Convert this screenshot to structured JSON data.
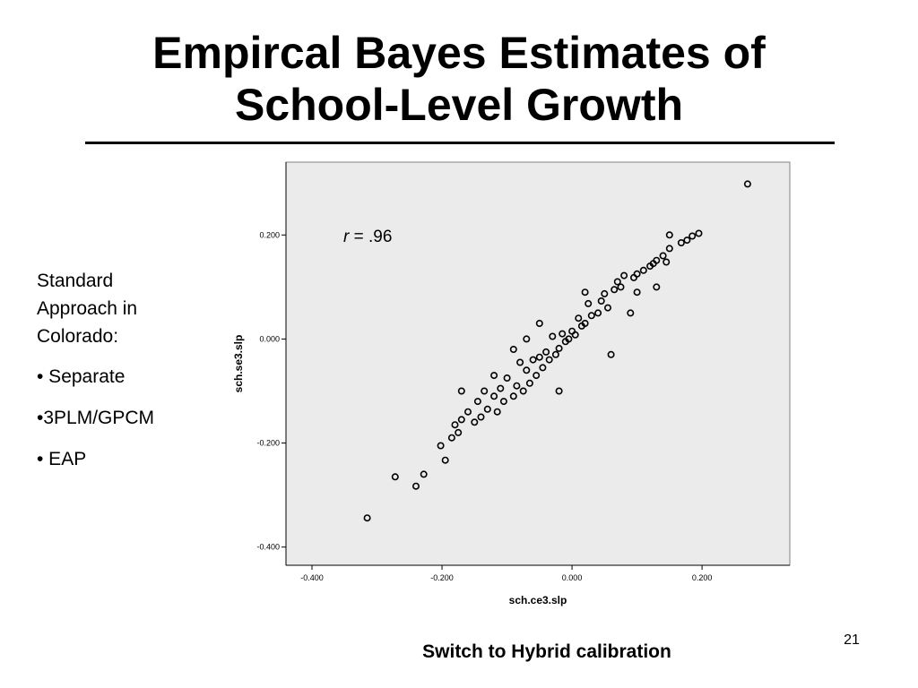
{
  "slide": {
    "title_line1": "Empircal Bayes Estimates of",
    "title_line2": "School-Level Growth",
    "notes_heading": "Standard Approach in Colorado:",
    "notes_bullets": [
      "• Separate",
      "•3PLM/GPCM",
      "• EAP"
    ],
    "footer": "Switch to Hybrid calibration",
    "page_number": "21"
  },
  "chart_data": {
    "type": "scatter",
    "xlabel": "sch.ce3.slp",
    "ylabel": "sch.se3.slp",
    "annotation_r": "r",
    "annotation_value": " = .96",
    "xlim": [
      -0.44,
      0.335
    ],
    "ylim": [
      -0.435,
      0.34
    ],
    "xticks": [
      -0.4,
      -0.2,
      0.0,
      0.2
    ],
    "xtick_labels": [
      "-0.400",
      "-0.200",
      "0.000",
      "0.200"
    ],
    "yticks": [
      -0.4,
      -0.2,
      0.0,
      0.2
    ],
    "ytick_labels": [
      "-0.400",
      "-0.200",
      "0.000",
      "0.200"
    ],
    "grid": false,
    "plot_background": "#ebebeb",
    "marker_color": "#000000",
    "marker": "open-circle",
    "points": [
      [
        0.27,
        0.298
      ],
      [
        0.195,
        0.203
      ],
      [
        0.185,
        0.198
      ],
      [
        0.177,
        0.19
      ],
      [
        0.168,
        0.185
      ],
      [
        0.15,
        0.2
      ],
      [
        0.15,
        0.174
      ],
      [
        0.145,
        0.148
      ],
      [
        0.14,
        0.16
      ],
      [
        0.13,
        0.151
      ],
      [
        0.125,
        0.145
      ],
      [
        0.12,
        0.14
      ],
      [
        0.11,
        0.132
      ],
      [
        0.1,
        0.125
      ],
      [
        0.095,
        0.118
      ],
      [
        0.08,
        0.122
      ],
      [
        0.075,
        0.1
      ],
      [
        0.065,
        0.095
      ],
      [
        0.055,
        0.06
      ],
      [
        0.05,
        0.087
      ],
      [
        0.045,
        0.073
      ],
      [
        0.04,
        0.05
      ],
      [
        0.03,
        0.045
      ],
      [
        0.025,
        0.068
      ],
      [
        0.02,
        0.03
      ],
      [
        0.015,
        0.025
      ],
      [
        0.01,
        0.04
      ],
      [
        0.005,
        0.008
      ],
      [
        0.0,
        0.015
      ],
      [
        -0.005,
        0.0
      ],
      [
        -0.01,
        -0.005
      ],
      [
        -0.015,
        0.01
      ],
      [
        -0.02,
        -0.018
      ],
      [
        -0.025,
        -0.03
      ],
      [
        -0.03,
        0.005
      ],
      [
        -0.035,
        -0.04
      ],
      [
        -0.04,
        -0.025
      ],
      [
        -0.045,
        -0.055
      ],
      [
        -0.05,
        -0.035
      ],
      [
        -0.055,
        -0.07
      ],
      [
        -0.06,
        -0.04
      ],
      [
        -0.065,
        -0.085
      ],
      [
        -0.07,
        -0.06
      ],
      [
        -0.075,
        -0.1
      ],
      [
        -0.08,
        -0.045
      ],
      [
        -0.085,
        -0.09
      ],
      [
        -0.09,
        -0.11
      ],
      [
        -0.1,
        -0.075
      ],
      [
        -0.105,
        -0.12
      ],
      [
        -0.11,
        -0.095
      ],
      [
        -0.115,
        -0.14
      ],
      [
        -0.12,
        -0.11
      ],
      [
        -0.13,
        -0.135
      ],
      [
        -0.135,
        -0.1
      ],
      [
        -0.14,
        -0.15
      ],
      [
        -0.145,
        -0.12
      ],
      [
        -0.15,
        -0.16
      ],
      [
        -0.16,
        -0.14
      ],
      [
        -0.17,
        -0.155
      ],
      [
        -0.175,
        -0.18
      ],
      [
        -0.18,
        -0.165
      ],
      [
        -0.185,
        -0.19
      ],
      [
        -0.195,
        -0.233
      ],
      [
        -0.202,
        -0.205
      ],
      [
        -0.228,
        -0.26
      ],
      [
        -0.24,
        -0.283
      ],
      [
        -0.272,
        -0.265
      ],
      [
        -0.315,
        -0.344
      ],
      [
        0.06,
        -0.03
      ],
      [
        -0.05,
        0.03
      ],
      [
        0.09,
        0.05
      ],
      [
        -0.02,
        -0.1
      ],
      [
        0.1,
        0.09
      ],
      [
        -0.12,
        -0.07
      ],
      [
        0.02,
        0.09
      ],
      [
        -0.07,
        0.0
      ],
      [
        0.13,
        0.1
      ],
      [
        -0.17,
        -0.1
      ],
      [
        0.07,
        0.11
      ],
      [
        -0.09,
        -0.02
      ]
    ]
  }
}
